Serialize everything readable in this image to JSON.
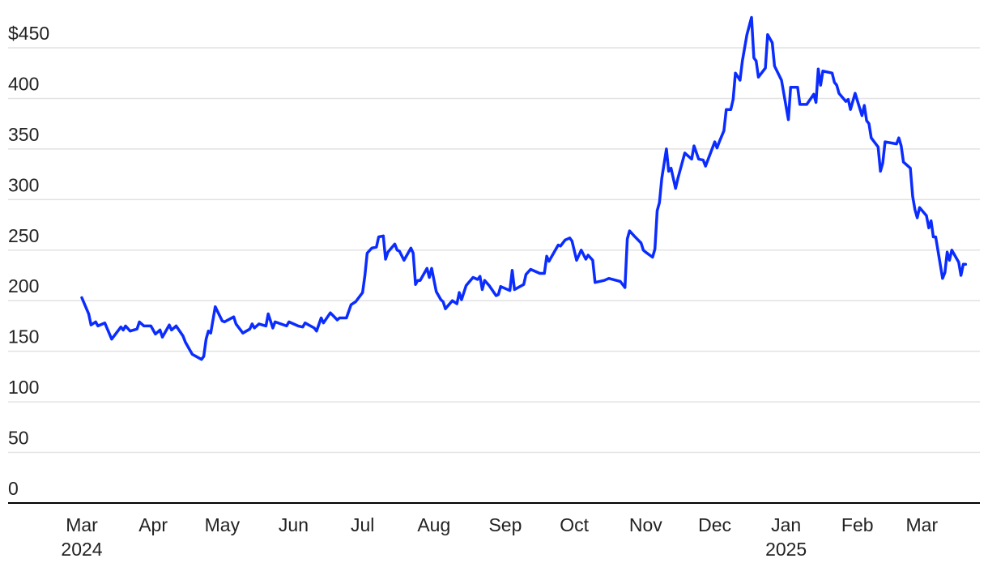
{
  "chart_data": {
    "type": "line",
    "title": "",
    "xlabel": "",
    "ylabel": "",
    "ylim": [
      0,
      450
    ],
    "xlim": [
      "2024-03-01",
      "2025-03-20"
    ],
    "grid": true,
    "legend": "none",
    "line_color": "#0a2cff",
    "y_ticks": [
      {
        "value": 0,
        "label": "0"
      },
      {
        "value": 50,
        "label": "50"
      },
      {
        "value": 100,
        "label": "100"
      },
      {
        "value": 150,
        "label": "150"
      },
      {
        "value": 200,
        "label": "200"
      },
      {
        "value": 250,
        "label": "250"
      },
      {
        "value": 300,
        "label": "300"
      },
      {
        "value": 350,
        "label": "350"
      },
      {
        "value": 400,
        "label": "400"
      },
      {
        "value": 450,
        "label": "$450"
      }
    ],
    "x_ticks": [
      {
        "date": "2024-03-01",
        "label": "Mar",
        "sublabel": "2024"
      },
      {
        "date": "2024-04-01",
        "label": "Apr"
      },
      {
        "date": "2024-05-01",
        "label": "May"
      },
      {
        "date": "2024-06-01",
        "label": "Jun"
      },
      {
        "date": "2024-07-01",
        "label": "Jul"
      },
      {
        "date": "2024-08-01",
        "label": "Aug"
      },
      {
        "date": "2024-09-01",
        "label": "Sep"
      },
      {
        "date": "2024-10-01",
        "label": "Oct"
      },
      {
        "date": "2024-11-01",
        "label": "Nov"
      },
      {
        "date": "2024-12-01",
        "label": "Dec"
      },
      {
        "date": "2025-01-01",
        "label": "Jan",
        "sublabel": "2025"
      },
      {
        "date": "2025-02-01",
        "label": "Feb"
      },
      {
        "date": "2025-03-01",
        "label": "Mar"
      }
    ],
    "series": [
      {
        "points": [
          [
            "2024-03-01",
            203
          ],
          [
            "2024-03-04",
            187
          ],
          [
            "2024-03-05",
            176
          ],
          [
            "2024-03-07",
            179
          ],
          [
            "2024-03-08",
            175
          ],
          [
            "2024-03-11",
            178
          ],
          [
            "2024-03-14",
            162
          ],
          [
            "2024-03-18",
            174
          ],
          [
            "2024-03-19",
            171
          ],
          [
            "2024-03-20",
            175
          ],
          [
            "2024-03-22",
            170
          ],
          [
            "2024-03-25",
            172
          ],
          [
            "2024-03-26",
            179
          ],
          [
            "2024-03-28",
            175
          ],
          [
            "2024-03-31",
            175
          ],
          [
            "2024-04-02",
            167
          ],
          [
            "2024-04-04",
            171
          ],
          [
            "2024-04-05",
            164
          ],
          [
            "2024-04-08",
            176
          ],
          [
            "2024-04-09",
            171
          ],
          [
            "2024-04-11",
            175
          ],
          [
            "2024-04-14",
            165
          ],
          [
            "2024-04-15",
            159
          ],
          [
            "2024-04-18",
            147
          ],
          [
            "2024-04-22",
            142
          ],
          [
            "2024-04-23",
            145
          ],
          [
            "2024-04-24",
            162
          ],
          [
            "2024-04-25",
            170
          ],
          [
            "2024-04-26",
            168
          ],
          [
            "2024-04-28",
            194
          ],
          [
            "2024-05-01",
            180
          ],
          [
            "2024-05-02",
            179
          ],
          [
            "2024-05-06",
            184
          ],
          [
            "2024-05-07",
            177
          ],
          [
            "2024-05-10",
            168
          ],
          [
            "2024-05-13",
            172
          ],
          [
            "2024-05-14",
            177
          ],
          [
            "2024-05-15",
            173
          ],
          [
            "2024-05-17",
            177
          ],
          [
            "2024-05-20",
            175
          ],
          [
            "2024-05-21",
            187
          ],
          [
            "2024-05-23",
            173
          ],
          [
            "2024-05-24",
            179
          ],
          [
            "2024-05-29",
            175
          ],
          [
            "2024-05-30",
            179
          ],
          [
            "2024-06-03",
            175
          ],
          [
            "2024-06-05",
            174
          ],
          [
            "2024-06-06",
            178
          ],
          [
            "2024-06-10",
            173
          ],
          [
            "2024-06-11",
            170
          ],
          [
            "2024-06-13",
            183
          ],
          [
            "2024-06-14",
            178
          ],
          [
            "2024-06-17",
            188
          ],
          [
            "2024-06-20",
            181
          ],
          [
            "2024-06-21",
            183
          ],
          [
            "2024-06-24",
            183
          ],
          [
            "2024-06-26",
            196
          ],
          [
            "2024-06-28",
            199
          ],
          [
            "2024-07-01",
            208
          ],
          [
            "2024-07-02",
            225
          ],
          [
            "2024-07-03",
            247
          ],
          [
            "2024-07-05",
            252
          ],
          [
            "2024-07-07",
            253
          ],
          [
            "2024-07-08",
            263
          ],
          [
            "2024-07-10",
            264
          ],
          [
            "2024-07-11",
            241
          ],
          [
            "2024-07-12",
            248
          ],
          [
            "2024-07-15",
            256
          ],
          [
            "2024-07-16",
            250
          ],
          [
            "2024-07-17",
            249
          ],
          [
            "2024-07-19",
            240
          ],
          [
            "2024-07-22",
            252
          ],
          [
            "2024-07-23",
            247
          ],
          [
            "2024-07-24",
            216
          ],
          [
            "2024-07-25",
            220
          ],
          [
            "2024-07-26",
            220
          ],
          [
            "2024-07-29",
            232
          ],
          [
            "2024-07-30",
            223
          ],
          [
            "2024-07-31",
            232
          ],
          [
            "2024-08-02",
            209
          ],
          [
            "2024-08-04",
            201
          ],
          [
            "2024-08-05",
            199
          ],
          [
            "2024-08-06",
            192
          ],
          [
            "2024-08-09",
            200
          ],
          [
            "2024-08-11",
            197
          ],
          [
            "2024-08-12",
            208
          ],
          [
            "2024-08-13",
            201
          ],
          [
            "2024-08-15",
            215
          ],
          [
            "2024-08-18",
            223
          ],
          [
            "2024-08-20",
            221
          ],
          [
            "2024-08-21",
            224
          ],
          [
            "2024-08-22",
            211
          ],
          [
            "2024-08-23",
            220
          ],
          [
            "2024-08-25",
            215
          ],
          [
            "2024-08-28",
            205
          ],
          [
            "2024-08-29",
            206
          ],
          [
            "2024-08-30",
            214
          ],
          [
            "2024-09-03",
            210
          ],
          [
            "2024-09-04",
            230
          ],
          [
            "2024-09-05",
            211
          ],
          [
            "2024-09-09",
            216
          ],
          [
            "2024-09-10",
            226
          ],
          [
            "2024-09-12",
            231
          ],
          [
            "2024-09-16",
            227
          ],
          [
            "2024-09-18",
            227
          ],
          [
            "2024-09-19",
            244
          ],
          [
            "2024-09-20",
            239
          ],
          [
            "2024-09-24",
            255
          ],
          [
            "2024-09-25",
            254
          ],
          [
            "2024-09-27",
            260
          ],
          [
            "2024-09-29",
            262
          ],
          [
            "2024-09-30",
            259
          ],
          [
            "2024-10-02",
            240
          ],
          [
            "2024-10-04",
            250
          ],
          [
            "2024-10-06",
            241
          ],
          [
            "2024-10-07",
            245
          ],
          [
            "2024-10-09",
            240
          ],
          [
            "2024-10-10",
            218
          ],
          [
            "2024-10-14",
            220
          ],
          [
            "2024-10-16",
            222
          ],
          [
            "2024-10-21",
            219
          ],
          [
            "2024-10-23",
            213
          ],
          [
            "2024-10-24",
            261
          ],
          [
            "2024-10-25",
            269
          ],
          [
            "2024-10-27",
            264
          ],
          [
            "2024-10-30",
            257
          ],
          [
            "2024-10-31",
            250
          ],
          [
            "2024-11-01",
            248
          ],
          [
            "2024-11-04",
            243
          ],
          [
            "2024-11-05",
            251
          ],
          [
            "2024-11-06",
            289
          ],
          [
            "2024-11-07",
            297
          ],
          [
            "2024-11-08",
            321
          ],
          [
            "2024-11-10",
            350
          ],
          [
            "2024-11-11",
            328
          ],
          [
            "2024-11-12",
            331
          ],
          [
            "2024-11-14",
            311
          ],
          [
            "2024-11-15",
            321
          ],
          [
            "2024-11-18",
            346
          ],
          [
            "2024-11-21",
            340
          ],
          [
            "2024-11-22",
            353
          ],
          [
            "2024-11-24",
            340
          ],
          [
            "2024-11-26",
            339
          ],
          [
            "2024-11-27",
            333
          ],
          [
            "2024-11-29",
            345
          ],
          [
            "2024-12-01",
            357
          ],
          [
            "2024-12-02",
            351
          ],
          [
            "2024-12-03",
            357
          ],
          [
            "2024-12-05",
            368
          ],
          [
            "2024-12-06",
            389
          ],
          [
            "2024-12-08",
            389
          ],
          [
            "2024-12-09",
            399
          ],
          [
            "2024-12-10",
            425
          ],
          [
            "2024-12-12",
            418
          ],
          [
            "2024-12-13",
            437
          ],
          [
            "2024-12-15",
            463
          ],
          [
            "2024-12-17",
            480
          ],
          [
            "2024-12-18",
            440
          ],
          [
            "2024-12-19",
            437
          ],
          [
            "2024-12-20",
            421
          ],
          [
            "2024-12-23",
            430
          ],
          [
            "2024-12-24",
            463
          ],
          [
            "2024-12-26",
            455
          ],
          [
            "2024-12-27",
            432
          ],
          [
            "2024-12-30",
            418
          ],
          [
            "2025-01-02",
            379
          ],
          [
            "2025-01-03",
            411
          ],
          [
            "2025-01-06",
            411
          ],
          [
            "2025-01-07",
            394
          ],
          [
            "2025-01-10",
            394
          ],
          [
            "2025-01-13",
            404
          ],
          [
            "2025-01-14",
            396
          ],
          [
            "2025-01-15",
            429
          ],
          [
            "2025-01-16",
            413
          ],
          [
            "2025-01-17",
            427
          ],
          [
            "2025-01-21",
            425
          ],
          [
            "2025-01-22",
            416
          ],
          [
            "2025-01-23",
            413
          ],
          [
            "2025-01-24",
            405
          ],
          [
            "2025-01-27",
            397
          ],
          [
            "2025-01-28",
            399
          ],
          [
            "2025-01-29",
            389
          ],
          [
            "2025-01-31",
            405
          ],
          [
            "2025-02-03",
            383
          ],
          [
            "2025-02-04",
            393
          ],
          [
            "2025-02-05",
            378
          ],
          [
            "2025-02-06",
            375
          ],
          [
            "2025-02-07",
            361
          ],
          [
            "2025-02-10",
            352
          ],
          [
            "2025-02-11",
            328
          ],
          [
            "2025-02-12",
            336
          ],
          [
            "2025-02-13",
            357
          ],
          [
            "2025-02-18",
            355
          ],
          [
            "2025-02-19",
            361
          ],
          [
            "2025-02-20",
            353
          ],
          [
            "2025-02-21",
            337
          ],
          [
            "2025-02-24",
            331
          ],
          [
            "2025-02-25",
            303
          ],
          [
            "2025-02-26",
            290
          ],
          [
            "2025-02-27",
            282
          ],
          [
            "2025-02-28",
            292
          ],
          [
            "2025-03-03",
            284
          ],
          [
            "2025-03-04",
            272
          ],
          [
            "2025-03-05",
            279
          ],
          [
            "2025-03-06",
            263
          ],
          [
            "2025-03-07",
            263
          ],
          [
            "2025-03-10",
            222
          ],
          [
            "2025-03-11",
            228
          ],
          [
            "2025-03-12",
            248
          ],
          [
            "2025-03-13",
            240
          ],
          [
            "2025-03-14",
            250
          ],
          [
            "2025-03-17",
            238
          ],
          [
            "2025-03-18",
            225
          ],
          [
            "2025-03-19",
            236
          ],
          [
            "2025-03-20",
            236
          ]
        ]
      }
    ]
  }
}
